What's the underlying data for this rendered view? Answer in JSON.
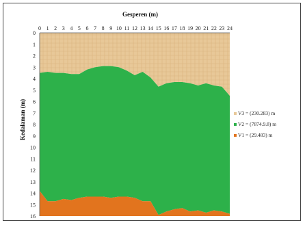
{
  "chart_data": {
    "type": "area",
    "xlabel": "Gesperen (m)",
    "ylabel": "Kedalaman (m)",
    "x_ticks": [
      0,
      1,
      2,
      3,
      4,
      5,
      6,
      7,
      8,
      9,
      10,
      11,
      12,
      13,
      14,
      15,
      16,
      17,
      18,
      19,
      20,
      21,
      22,
      23,
      24
    ],
    "y_ticks": [
      0,
      1,
      2,
      3,
      4,
      5,
      6,
      7,
      8,
      9,
      10,
      11,
      12,
      13,
      14,
      15,
      16
    ],
    "xlim": [
      0,
      24
    ],
    "ylim": [
      0,
      16
    ],
    "x": [
      0,
      1,
      2,
      3,
      4,
      5,
      6,
      7,
      8,
      9,
      10,
      11,
      12,
      13,
      14,
      15,
      16,
      17,
      18,
      19,
      20,
      21,
      22,
      23,
      24
    ],
    "series": [
      {
        "name": "V3 = (230.283) m",
        "color": "#e8c898",
        "fill": "top",
        "values": [
          3.5,
          3.4,
          3.5,
          3.5,
          3.6,
          3.6,
          3.2,
          3.0,
          2.9,
          2.9,
          3.0,
          3.3,
          3.7,
          3.4,
          3.9,
          4.7,
          4.4,
          4.3,
          4.3,
          4.4,
          4.6,
          4.4,
          4.6,
          4.7,
          5.5
        ]
      },
      {
        "name": "V2 = (7874.9.8) m",
        "color": "#2db14a",
        "fill": "between",
        "values": [
          13.8,
          14.7,
          14.7,
          14.5,
          14.6,
          14.4,
          14.3,
          14.3,
          14.3,
          14.4,
          14.3,
          14.3,
          14.4,
          14.7,
          14.7,
          15.9,
          15.6,
          15.4,
          15.3,
          15.6,
          15.5,
          15.7,
          15.5,
          15.6,
          15.8
        ]
      },
      {
        "name": "V1 = (29.483) m",
        "color": "#e2741e",
        "fill": "bottom"
      }
    ],
    "legend_position": "right"
  }
}
